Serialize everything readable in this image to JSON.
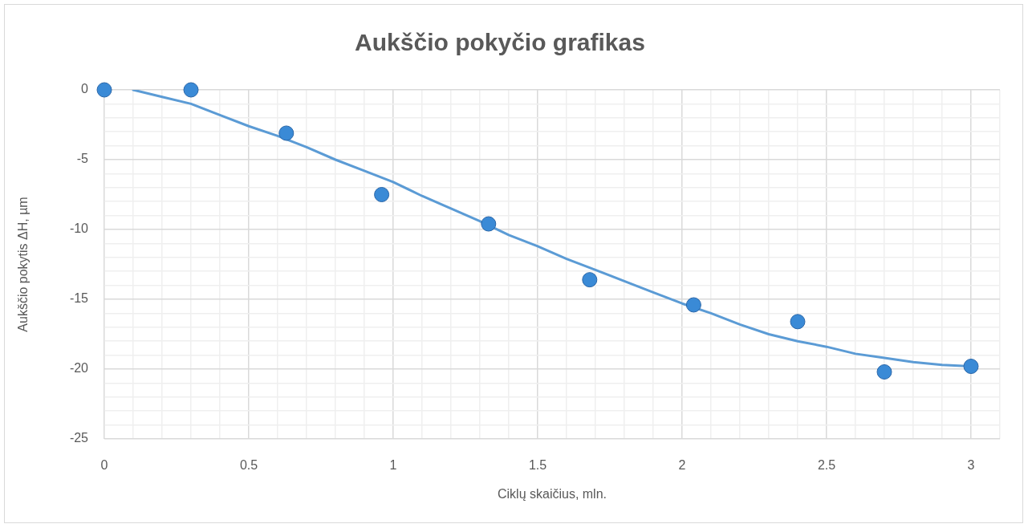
{
  "chart_data": {
    "type": "scatter",
    "title": "Aukščio pokyčio grafikas",
    "xlabel": "Ciklų skaičius, mln.",
    "ylabel": "Aukščio pokytis ΔH, µm",
    "series": [
      {
        "type": "scatter",
        "color": "#3a8ad6",
        "marker": "circle",
        "x": [
          0,
          0.3,
          0.63,
          0.96,
          1.33,
          1.68,
          2.04,
          2.4,
          2.7,
          3.0
        ],
        "values": [
          0,
          0,
          -3.1,
          -7.5,
          -9.6,
          -13.6,
          -15.4,
          -16.6,
          -20.2,
          -19.8
        ]
      },
      {
        "type": "line",
        "color": "#5b9bd5",
        "marker": "none",
        "x": [
          0.1,
          0.2,
          0.3,
          0.4,
          0.5,
          0.6,
          0.7,
          0.8,
          0.9,
          1.0,
          1.1,
          1.2,
          1.3,
          1.4,
          1.5,
          1.6,
          1.7,
          1.8,
          1.9,
          2.0,
          2.1,
          2.2,
          2.3,
          2.4,
          2.5,
          2.6,
          2.7,
          2.8,
          2.9,
          3.0
        ],
        "values": [
          0,
          -0.5,
          -1.0,
          -1.8,
          -2.6,
          -3.3,
          -4.1,
          -5.0,
          -5.8,
          -6.6,
          -7.6,
          -8.5,
          -9.4,
          -10.4,
          -11.2,
          -12.1,
          -12.9,
          -13.7,
          -14.5,
          -15.3,
          -16.0,
          -16.8,
          -17.5,
          -18.0,
          -18.4,
          -18.9,
          -19.2,
          -19.5,
          -19.7,
          -19.8
        ]
      }
    ],
    "xlim": [
      0,
      3.1
    ],
    "xticks": [
      0,
      {
        "value": 0.1,
        "label": null
      },
      {
        "value": 0.2,
        "label": null
      },
      {
        "value": 0.3,
        "label": null
      },
      {
        "value": 0.4,
        "label": null
      },
      0.5,
      {
        "value": 0.6,
        "label": null
      },
      {
        "value": 0.7,
        "label": null
      },
      {
        "value": 0.8,
        "label": null
      },
      {
        "value": 0.9,
        "label": null
      },
      1,
      {
        "value": 1.1,
        "label": null
      },
      {
        "value": 1.2,
        "label": null
      },
      {
        "value": 1.3,
        "label": null
      },
      {
        "value": 1.4,
        "label": null
      },
      1.5,
      {
        "value": 1.6,
        "label": null
      },
      {
        "value": 1.7,
        "label": null
      },
      {
        "value": 1.8,
        "label": null
      },
      {
        "value": 1.9,
        "label": null
      },
      2,
      {
        "value": 2.1,
        "label": null
      },
      {
        "value": 2.2,
        "label": null
      },
      {
        "value": 2.3,
        "label": null
      },
      {
        "value": 2.4,
        "label": null
      },
      2.5,
      {
        "value": 2.6,
        "label": null
      },
      {
        "value": 2.7,
        "label": null
      },
      {
        "value": 2.8,
        "label": null
      },
      {
        "value": 2.9,
        "label": null
      },
      3,
      {
        "value": 3.1,
        "label": null
      }
    ],
    "ylim": [
      -25,
      0
    ],
    "yticks": [
      -25,
      {
        "value": -24,
        "label": null
      },
      {
        "value": -23,
        "label": null
      },
      {
        "value": -22,
        "label": null
      },
      {
        "value": -21,
        "label": null
      },
      -20,
      {
        "value": -19,
        "label": null
      },
      {
        "value": -18,
        "label": null
      },
      {
        "value": -17,
        "label": null
      },
      {
        "value": -16,
        "label": null
      },
      -15,
      {
        "value": -14,
        "label": null
      },
      {
        "value": -13,
        "label": null
      },
      {
        "value": -12,
        "label": null
      },
      {
        "value": -11,
        "label": null
      },
      -10,
      {
        "value": -9,
        "label": null
      },
      {
        "value": -8,
        "label": null
      },
      {
        "value": -7,
        "label": null
      },
      {
        "value": -6,
        "label": null
      },
      -5,
      {
        "value": -4,
        "label": null
      },
      {
        "value": -3,
        "label": null
      },
      {
        "value": -2,
        "label": null
      },
      {
        "value": -1,
        "label": null
      },
      0
    ],
    "grid": true
  }
}
